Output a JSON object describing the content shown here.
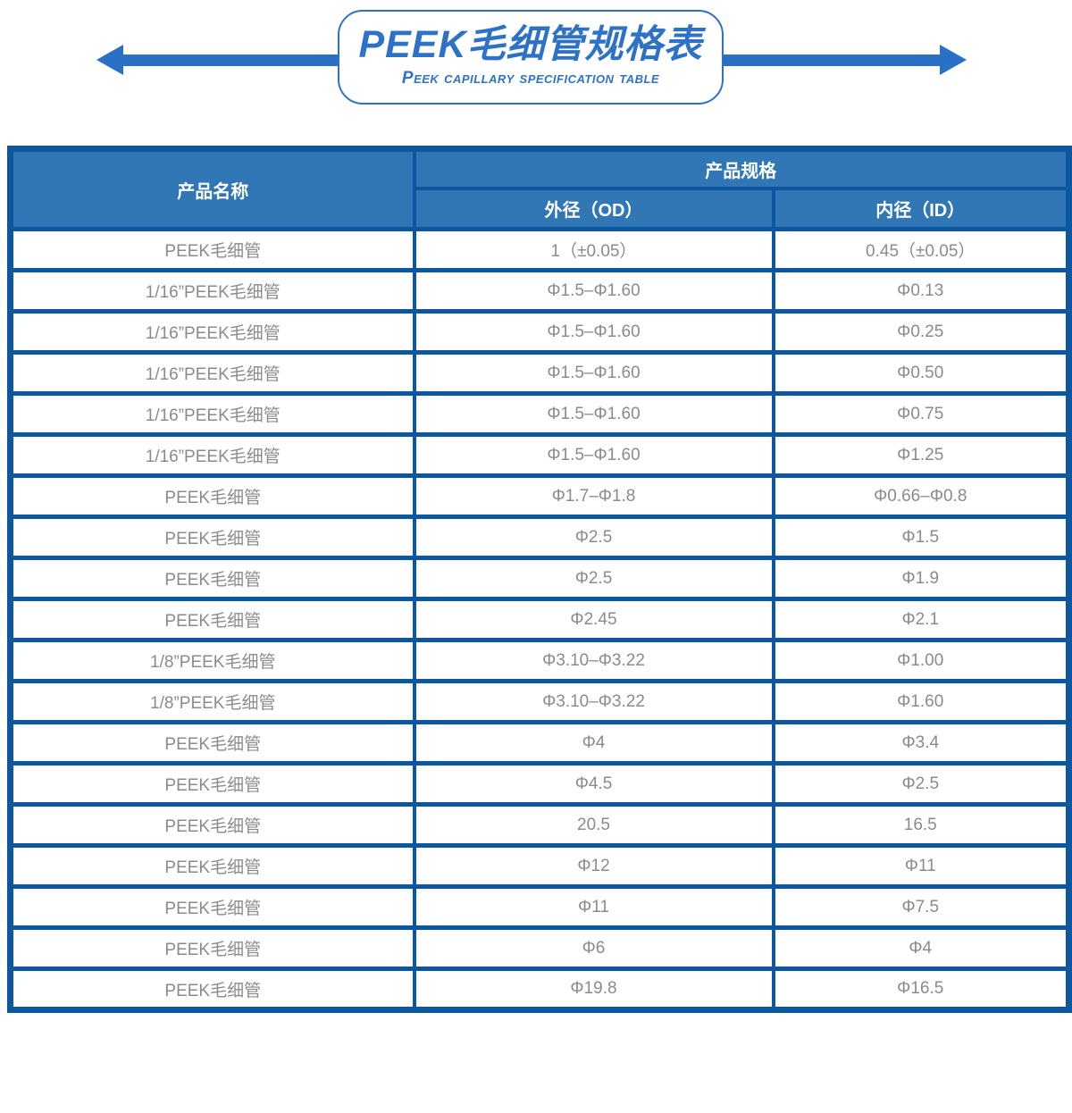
{
  "header": {
    "title": "PEEK毛细管规格表",
    "subtitle": "Peek capillary specification table"
  },
  "icons": {
    "left_arrow": "left-arrow-icon",
    "right_arrow": "right-arrow-icon"
  },
  "colors": {
    "accent_blue": "#2D72C7",
    "arrow_blue": "#2B70C7",
    "table_border_blue": "#0D57A0",
    "header_fill_blue": "#3176B5",
    "header_text": "#FFFFFF",
    "cell_text_gray": "#8B8B8B"
  },
  "table": {
    "col_product_name": "产品名称",
    "col_spec": "产品规格",
    "col_od": "外径（OD）",
    "col_id": "内径（ID）",
    "rows": [
      {
        "name": "PEEK毛细管",
        "od": "1（±0.05）",
        "id": "0.45（±0.05）"
      },
      {
        "name": "1/16”PEEK毛细管",
        "od": "Φ1.5–Φ1.60",
        "id": "Φ0.13"
      },
      {
        "name": "1/16”PEEK毛细管",
        "od": "Φ1.5–Φ1.60",
        "id": "Φ0.25"
      },
      {
        "name": "1/16”PEEK毛细管",
        "od": "Φ1.5–Φ1.60",
        "id": "Φ0.50"
      },
      {
        "name": "1/16”PEEK毛细管",
        "od": "Φ1.5–Φ1.60",
        "id": "Φ0.75"
      },
      {
        "name": "1/16”PEEK毛细管",
        "od": "Φ1.5–Φ1.60",
        "id": "Φ1.25"
      },
      {
        "name": "PEEK毛细管",
        "od": "Φ1.7–Φ1.8",
        "id": "Φ0.66–Φ0.8"
      },
      {
        "name": "PEEK毛细管",
        "od": "Φ2.5",
        "id": "Φ1.5"
      },
      {
        "name": "PEEK毛细管",
        "od": "Φ2.5",
        "id": "Φ1.9"
      },
      {
        "name": "PEEK毛细管",
        "od": "Φ2.45",
        "id": "Φ2.1"
      },
      {
        "name": "1/8”PEEK毛细管",
        "od": "Φ3.10–Φ3.22",
        "id": "Φ1.00"
      },
      {
        "name": "1/8”PEEK毛细管",
        "od": "Φ3.10–Φ3.22",
        "id": "Φ1.60"
      },
      {
        "name": "PEEK毛细管",
        "od": "Φ4",
        "id": "Φ3.4"
      },
      {
        "name": "PEEK毛细管",
        "od": "Φ4.5",
        "id": "Φ2.5"
      },
      {
        "name": "PEEK毛细管",
        "od": "20.5",
        "id": "16.5"
      },
      {
        "name": "PEEK毛细管",
        "od": "Φ12",
        "id": "Φ11"
      },
      {
        "name": "PEEK毛细管",
        "od": "Φ11",
        "id": "Φ7.5"
      },
      {
        "name": "PEEK毛细管",
        "od": "Φ6",
        "id": "Φ4"
      },
      {
        "name": "PEEK毛细管",
        "od": "Φ19.8",
        "id": "Φ16.5"
      }
    ]
  }
}
